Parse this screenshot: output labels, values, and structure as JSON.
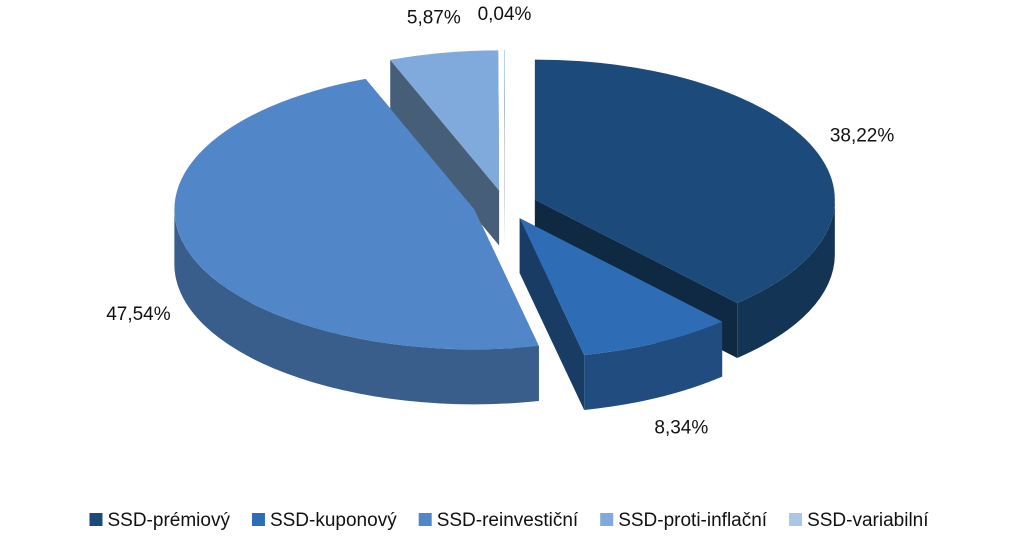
{
  "chart_data": {
    "type": "pie",
    "categories": [
      "SSD-prémiový",
      "SSD-kuponový",
      "SSD-reinvestiční",
      "SSD-proti-inflační",
      "SSD-variabilní"
    ],
    "values": [
      38.22,
      8.34,
      47.54,
      5.87,
      0.04
    ],
    "value_labels": [
      "38,22%",
      "8,34%",
      "47,54%",
      "5,87%",
      "0,04%"
    ],
    "colors": [
      "#1c4a7a",
      "#2e6db5",
      "#5186c8",
      "#80aadb",
      "#aac5e6"
    ],
    "legend": "bottom"
  }
}
